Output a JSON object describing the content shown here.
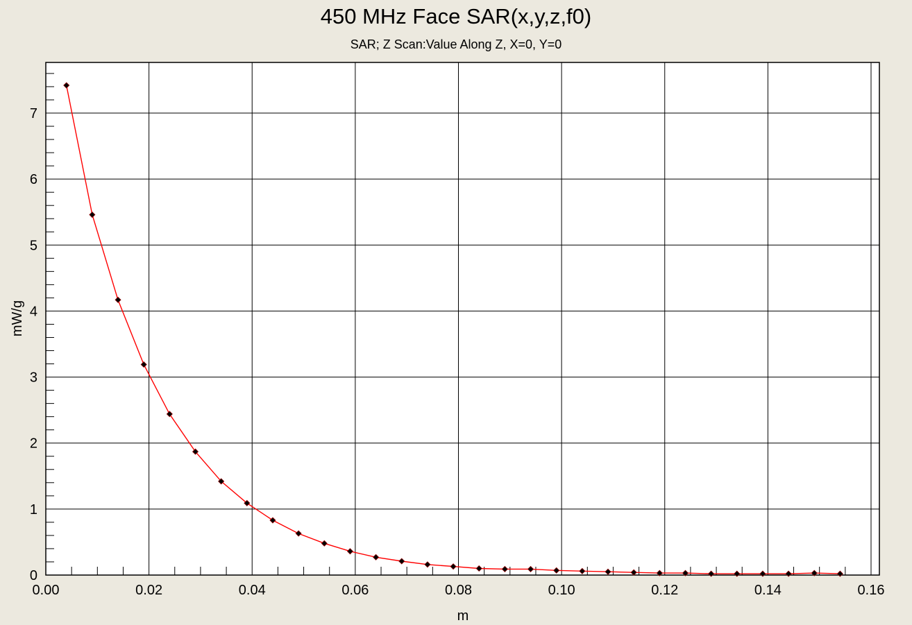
{
  "chart_data": {
    "type": "line",
    "title": "450 MHz Face SAR(x,y,z,f0)",
    "subtitle": "SAR; Z Scan:Value Along Z, X=0, Y=0",
    "xlabel": "m",
    "ylabel": "mW/g",
    "xlim": [
      0,
      0.16
    ],
    "ylim": [
      0,
      7.8
    ],
    "xticks": [
      "0.00",
      "0.02",
      "0.04",
      "0.06",
      "0.08",
      "0.10",
      "0.12",
      "0.14",
      "0.16"
    ],
    "yticks": [
      "0",
      "1",
      "2",
      "3",
      "4",
      "5",
      "6",
      "7"
    ],
    "grid": true,
    "series": [
      {
        "line_color": "#FF0000",
        "marker_color": "#000000",
        "x": [
          0.004,
          0.009,
          0.014,
          0.019,
          0.024,
          0.029,
          0.034,
          0.039,
          0.044,
          0.049,
          0.054,
          0.059,
          0.064,
          0.069,
          0.074,
          0.079,
          0.084,
          0.089,
          0.094,
          0.099,
          0.104,
          0.109,
          0.114,
          0.119,
          0.124,
          0.129,
          0.134,
          0.139,
          0.144,
          0.149,
          0.154
        ],
        "y": [
          7.42,
          5.46,
          4.17,
          3.19,
          2.44,
          1.87,
          1.42,
          1.09,
          0.83,
          0.63,
          0.48,
          0.36,
          0.27,
          0.21,
          0.16,
          0.13,
          0.1,
          0.09,
          0.09,
          0.07,
          0.06,
          0.05,
          0.04,
          0.03,
          0.03,
          0.02,
          0.02,
          0.02,
          0.02,
          0.03,
          0.02
        ]
      }
    ]
  }
}
